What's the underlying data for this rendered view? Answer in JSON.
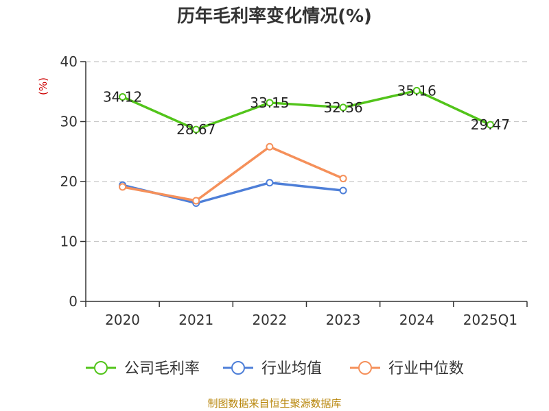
{
  "chart_data": {
    "type": "line",
    "title": "历年毛利率变化情况(%)",
    "unit": "(%)",
    "categories": [
      "2020",
      "2021",
      "2022",
      "2023",
      "2024",
      "2025Q1"
    ],
    "ylim": [
      0,
      40
    ],
    "yticks": [
      "0",
      "10",
      "20",
      "30",
      "40"
    ],
    "grid": true,
    "legend_position": "bottom",
    "series": [
      {
        "name": "公司毛利率",
        "color": "#52c41a",
        "values": [
          34.12,
          28.67,
          33.15,
          32.36,
          35.16,
          29.47
        ],
        "labels": [
          "34.12",
          "28.67",
          "33.15",
          "32.36",
          "35.16",
          "29.47"
        ]
      },
      {
        "name": "行业均值",
        "color": "#4e7fd8",
        "values": [
          19.4,
          16.4,
          19.8,
          18.5,
          null,
          null
        ]
      },
      {
        "name": "行业中位数",
        "color": "#f5905a",
        "values": [
          19.1,
          16.8,
          25.8,
          20.5,
          null,
          null
        ]
      }
    ],
    "source": "制图数据来自恒生聚源数据库"
  }
}
